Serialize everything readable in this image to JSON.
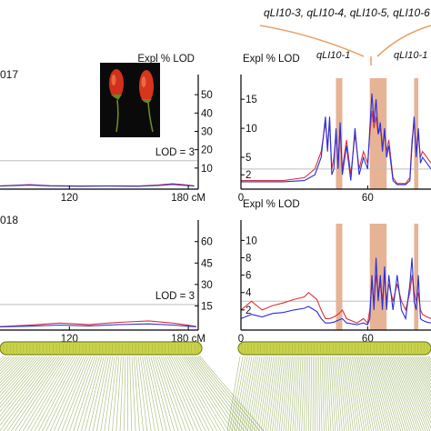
{
  "colors": {
    "series_red": "#d8333b",
    "series_blue": "#2a2fd8",
    "highlight_band": "#e0a07a",
    "chromosome_fill": "#c9d24a",
    "chromosome_stroke": "#7d8a1a",
    "link_lines": "#6f8f1f",
    "threshold_line": "#bdbdbd",
    "bracket": "#e8a36c"
  },
  "top_labels": {
    "bracket_label": "qLI10-3, qLI10-4, qLI10-5, qLI10-6",
    "qtl_left": "qLI10-1",
    "qtl_right": "qLI10-1"
  },
  "photo": {
    "icon": "two-red-pepper-fruits"
  },
  "chart_data": [
    {
      "type": "line",
      "panel": "left-top",
      "year_label": "017",
      "x_ticks": [
        "120",
        "180 cM"
      ],
      "x_tick_values": [
        120,
        180
      ],
      "xlim": [
        85,
        185
      ],
      "ylabel": "Expl % LOD",
      "y_ticks": [
        "50",
        "40",
        "30",
        "20",
        "10"
      ],
      "y_tick_values": [
        50,
        40,
        30,
        20,
        10
      ],
      "ylim": [
        0,
        57
      ],
      "threshold_label": "LOD = 3",
      "threshold": 14,
      "series": [
        {
          "color": "red",
          "x": [
            85,
            100,
            110,
            125,
            140,
            155,
            165,
            172,
            178,
            183
          ],
          "y": [
            0.3,
            1.0,
            0.4,
            0.2,
            0.3,
            0.2,
            0.8,
            1.5,
            0.9,
            0.3
          ]
        },
        {
          "color": "blue",
          "x": [
            85,
            100,
            110,
            125,
            140,
            155,
            165,
            172,
            178,
            183
          ],
          "y": [
            0.2,
            0.7,
            0.3,
            0.1,
            0.2,
            0.1,
            0.5,
            1.1,
            0.6,
            0.2
          ]
        }
      ]
    },
    {
      "type": "line",
      "panel": "left-bottom",
      "year_label": "018",
      "x_ticks": [
        "120",
        "180 cM"
      ],
      "x_tick_values": [
        120,
        180
      ],
      "xlim": [
        85,
        185
      ],
      "y_ticks": [
        "60",
        "45",
        "30",
        "15"
      ],
      "y_tick_values": [
        60,
        45,
        30,
        15
      ],
      "ylim": [
        0,
        70
      ],
      "threshold_label": "LOD = 3",
      "threshold": 16,
      "series": [
        {
          "color": "red",
          "x": [
            85,
            100,
            115,
            130,
            145,
            160,
            172,
            180,
            184
          ],
          "y": [
            0.5,
            1.5,
            3.0,
            2.0,
            3.5,
            4.5,
            3.0,
            1.5,
            0.5
          ]
        },
        {
          "color": "blue",
          "x": [
            85,
            100,
            115,
            130,
            145,
            160,
            172,
            180,
            184
          ],
          "y": [
            0.3,
            0.8,
            1.6,
            1.0,
            1.9,
            2.4,
            1.6,
            0.8,
            0.3
          ]
        }
      ]
    },
    {
      "type": "line",
      "panel": "right-top",
      "ylabel": "Expl % LOD",
      "x_ticks": [
        "0",
        "60"
      ],
      "x_tick_values": [
        0,
        60
      ],
      "xlim": [
        0,
        90
      ],
      "y_ticks": [
        "15",
        "10",
        "5",
        "2"
      ],
      "y_tick_values": [
        15,
        10,
        5,
        2
      ],
      "ylim": [
        0,
        18
      ],
      "threshold": 3,
      "highlight_bands": [
        [
          45,
          48
        ],
        [
          61,
          69
        ],
        [
          82,
          84
        ]
      ],
      "series": [
        {
          "color": "red",
          "x": [
            0,
            10,
            20,
            30,
            35,
            38,
            40,
            41,
            42,
            43,
            44,
            45,
            46,
            47,
            48,
            50,
            52,
            54,
            56,
            58,
            60,
            61,
            62,
            63,
            64,
            65,
            66,
            67,
            68,
            69,
            70,
            72,
            74,
            76,
            78,
            80,
            81,
            82,
            83,
            84,
            85,
            86,
            88,
            90
          ],
          "y": [
            1,
            1,
            1,
            1.5,
            3,
            6,
            11,
            7,
            11,
            3,
            5,
            9,
            4,
            10,
            3,
            8,
            2,
            9,
            3,
            6,
            4,
            9,
            13,
            10,
            12,
            9,
            10,
            7,
            9,
            6,
            8,
            1.5,
            0.5,
            0.5,
            0.5,
            1.5,
            8,
            11,
            6,
            9,
            5,
            6,
            5,
            4
          ]
        },
        {
          "color": "blue",
          "x": [
            0,
            10,
            20,
            30,
            35,
            38,
            40,
            41,
            42,
            43,
            44,
            45,
            46,
            47,
            48,
            50,
            52,
            54,
            56,
            58,
            60,
            61,
            62,
            63,
            64,
            65,
            66,
            67,
            68,
            69,
            70,
            72,
            74,
            76,
            78,
            80,
            81,
            82,
            83,
            84,
            85,
            86,
            88,
            90
          ],
          "y": [
            0.8,
            0.8,
            0.8,
            1,
            2,
            5,
            12,
            6,
            12,
            2,
            3,
            10,
            3,
            11,
            2,
            7,
            1,
            10,
            2,
            5,
            3,
            10,
            16,
            11,
            15,
            9,
            11,
            6,
            10,
            5,
            7,
            1,
            0.3,
            0.3,
            0.3,
            1,
            7,
            12,
            5,
            10,
            4,
            5,
            4,
            3
          ]
        }
      ]
    },
    {
      "type": "line",
      "panel": "right-bottom",
      "ylabel": "Expl % LOD",
      "x_ticks": [
        "0",
        "60"
      ],
      "x_tick_values": [
        0,
        60
      ],
      "xlim": [
        0,
        90
      ],
      "y_ticks": [
        "10",
        "8",
        "6",
        "4",
        "2"
      ],
      "y_tick_values": [
        10,
        8,
        6,
        4,
        2
      ],
      "ylim": [
        0,
        11.5
      ],
      "threshold": 3,
      "highlight_bands": [
        [
          45,
          48
        ],
        [
          61,
          69
        ],
        [
          82,
          84
        ]
      ],
      "series": [
        {
          "color": "red",
          "x": [
            0,
            5,
            10,
            15,
            20,
            25,
            30,
            32,
            34,
            36,
            38,
            40,
            42,
            44,
            46,
            48,
            50,
            55,
            58,
            60,
            61,
            62,
            63,
            64,
            65,
            66,
            67,
            68,
            69,
            70,
            72,
            74,
            76,
            78,
            80,
            81,
            82,
            83,
            84,
            85,
            86,
            88,
            90
          ],
          "y": [
            2,
            3,
            2,
            2.5,
            2.8,
            3.2,
            3.5,
            4,
            3.6,
            3.2,
            2,
            1,
            1,
            1.2,
            1.5,
            2,
            1,
            0.5,
            1,
            0.5,
            2,
            5,
            3,
            6,
            4,
            5,
            3,
            6,
            3,
            5,
            3,
            5,
            3,
            2,
            4,
            6,
            4,
            3,
            4,
            2,
            1.5,
            1.2,
            1
          ]
        },
        {
          "color": "blue",
          "x": [
            0,
            5,
            10,
            15,
            20,
            25,
            30,
            32,
            34,
            36,
            38,
            40,
            42,
            44,
            46,
            48,
            50,
            55,
            58,
            60,
            61,
            62,
            63,
            64,
            65,
            66,
            67,
            68,
            69,
            70,
            72,
            74,
            76,
            78,
            80,
            81,
            82,
            83,
            84,
            85,
            86,
            88,
            90
          ],
          "y": [
            1,
            1.5,
            1.2,
            1.6,
            1.7,
            2,
            2.2,
            2.4,
            2.1,
            1.8,
            1,
            0.5,
            0.5,
            0.6,
            0.8,
            1,
            0.5,
            0.3,
            0.5,
            0.3,
            1,
            6,
            2,
            8,
            3,
            6,
            2,
            7,
            2,
            6,
            2,
            6,
            2,
            1,
            5,
            8,
            3,
            2,
            6,
            1,
            0.8,
            0.6,
            0.5
          ]
        }
      ]
    }
  ]
}
